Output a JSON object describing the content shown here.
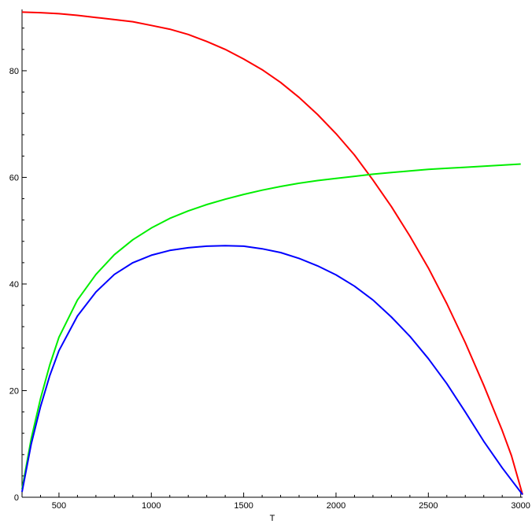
{
  "chart_data": {
    "type": "line",
    "xlabel": "T",
    "ylabel": "",
    "title": "",
    "xlim": [
      300,
      3010
    ],
    "ylim": [
      0,
      91.5
    ],
    "x_ticks": [
      500,
      1000,
      1500,
      2000,
      2500,
      3000
    ],
    "y_ticks": [
      0,
      20,
      40,
      60,
      80
    ],
    "x_minor_step": 100,
    "y_minor_step": 4,
    "grid": false,
    "legend": "none",
    "series": [
      {
        "color": "#ff0000",
        "points": [
          [
            300,
            91
          ],
          [
            400,
            90.9
          ],
          [
            500,
            90.7
          ],
          [
            600,
            90.4
          ],
          [
            700,
            90
          ],
          [
            800,
            89.6
          ],
          [
            900,
            89.2
          ],
          [
            1000,
            88.5
          ],
          [
            1100,
            87.8
          ],
          [
            1200,
            86.8
          ],
          [
            1300,
            85.5
          ],
          [
            1400,
            84
          ],
          [
            1500,
            82.2
          ],
          [
            1600,
            80.2
          ],
          [
            1700,
            77.8
          ],
          [
            1800,
            75
          ],
          [
            1900,
            71.8
          ],
          [
            2000,
            68.2
          ],
          [
            2100,
            64.2
          ],
          [
            2200,
            59.5
          ],
          [
            2300,
            54.5
          ],
          [
            2400,
            49
          ],
          [
            2500,
            43
          ],
          [
            2600,
            36.3
          ],
          [
            2700,
            29
          ],
          [
            2800,
            21
          ],
          [
            2900,
            12.5
          ],
          [
            2950,
            7.8
          ],
          [
            3010,
            0.5
          ]
        ]
      },
      {
        "color": "#00ee00",
        "points": [
          [
            300,
            1.5
          ],
          [
            350,
            11
          ],
          [
            400,
            18.5
          ],
          [
            450,
            24.8
          ],
          [
            500,
            30
          ],
          [
            600,
            37
          ],
          [
            700,
            41.8
          ],
          [
            800,
            45.5
          ],
          [
            900,
            48.3
          ],
          [
            1000,
            50.5
          ],
          [
            1100,
            52.3
          ],
          [
            1200,
            53.7
          ],
          [
            1300,
            54.9
          ],
          [
            1400,
            55.9
          ],
          [
            1500,
            56.8
          ],
          [
            1600,
            57.6
          ],
          [
            1700,
            58.3
          ],
          [
            1800,
            58.9
          ],
          [
            1900,
            59.4
          ],
          [
            2000,
            59.8
          ],
          [
            2100,
            60.2
          ],
          [
            2200,
            60.6
          ],
          [
            2300,
            60.9
          ],
          [
            2400,
            61.2
          ],
          [
            2500,
            61.5
          ],
          [
            2600,
            61.7
          ],
          [
            2700,
            61.9
          ],
          [
            2800,
            62.1
          ],
          [
            2900,
            62.3
          ],
          [
            3000,
            62.5
          ]
        ]
      },
      {
        "color": "#0000ff",
        "points": [
          [
            300,
            1
          ],
          [
            350,
            10
          ],
          [
            400,
            17
          ],
          [
            450,
            22.8
          ],
          [
            500,
            27.5
          ],
          [
            600,
            34
          ],
          [
            700,
            38.5
          ],
          [
            800,
            41.8
          ],
          [
            900,
            44
          ],
          [
            1000,
            45.4
          ],
          [
            1100,
            46.3
          ],
          [
            1200,
            46.8
          ],
          [
            1300,
            47.1
          ],
          [
            1400,
            47.2
          ],
          [
            1500,
            47.1
          ],
          [
            1600,
            46.6
          ],
          [
            1700,
            45.9
          ],
          [
            1800,
            44.8
          ],
          [
            1900,
            43.4
          ],
          [
            2000,
            41.7
          ],
          [
            2100,
            39.6
          ],
          [
            2200,
            37
          ],
          [
            2300,
            33.8
          ],
          [
            2400,
            30.2
          ],
          [
            2500,
            26
          ],
          [
            2600,
            21.3
          ],
          [
            2700,
            16
          ],
          [
            2800,
            10.5
          ],
          [
            2900,
            5.5
          ],
          [
            3010,
            0.5
          ]
        ]
      }
    ]
  }
}
